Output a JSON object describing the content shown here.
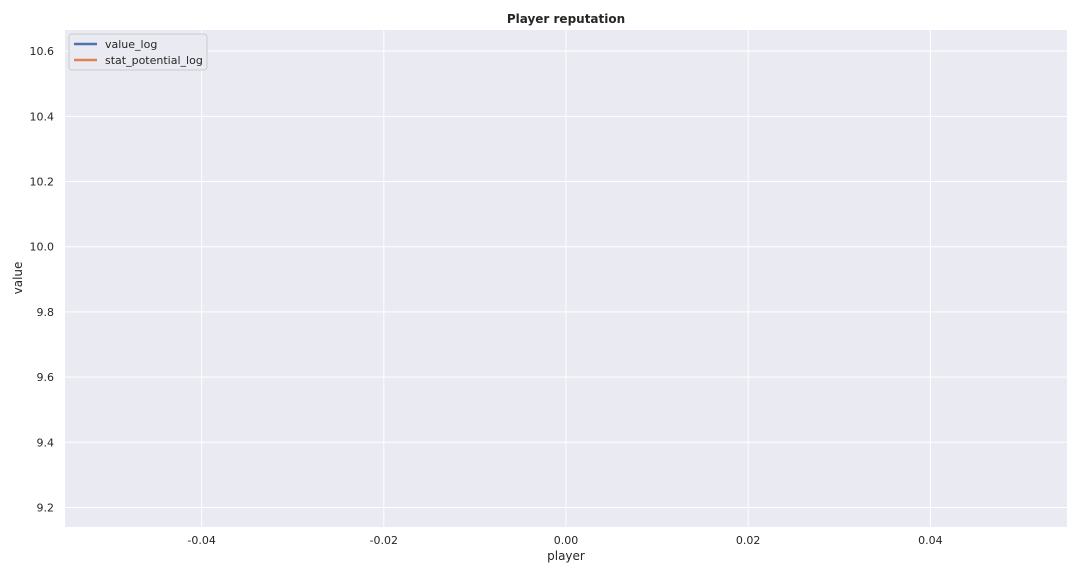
{
  "chart_data": {
    "type": "line",
    "title": "Player reputation",
    "xlabel": "player",
    "ylabel": "value",
    "xlim": [
      -0.055,
      0.055
    ],
    "ylim": [
      9.14,
      10.665
    ],
    "x_ticks": [
      -0.04,
      -0.02,
      0.0,
      0.02,
      0.04
    ],
    "x_tick_labels": [
      "-0.04",
      "-0.02",
      "0.00",
      "0.02",
      "0.04"
    ],
    "y_ticks": [
      9.2,
      9.4,
      9.6,
      9.8,
      10.0,
      10.2,
      10.4,
      10.6
    ],
    "y_tick_labels": [
      "9.2",
      "9.4",
      "9.6",
      "9.8",
      "10.0",
      "10.2",
      "10.4",
      "10.6"
    ],
    "grid": true,
    "legend_position": "top-left",
    "series": [
      {
        "name": "value_log",
        "color": "#4c72b0",
        "x": [],
        "y": []
      },
      {
        "name": "stat_potential_log",
        "color": "#dd8452",
        "x": [],
        "y": []
      }
    ]
  }
}
